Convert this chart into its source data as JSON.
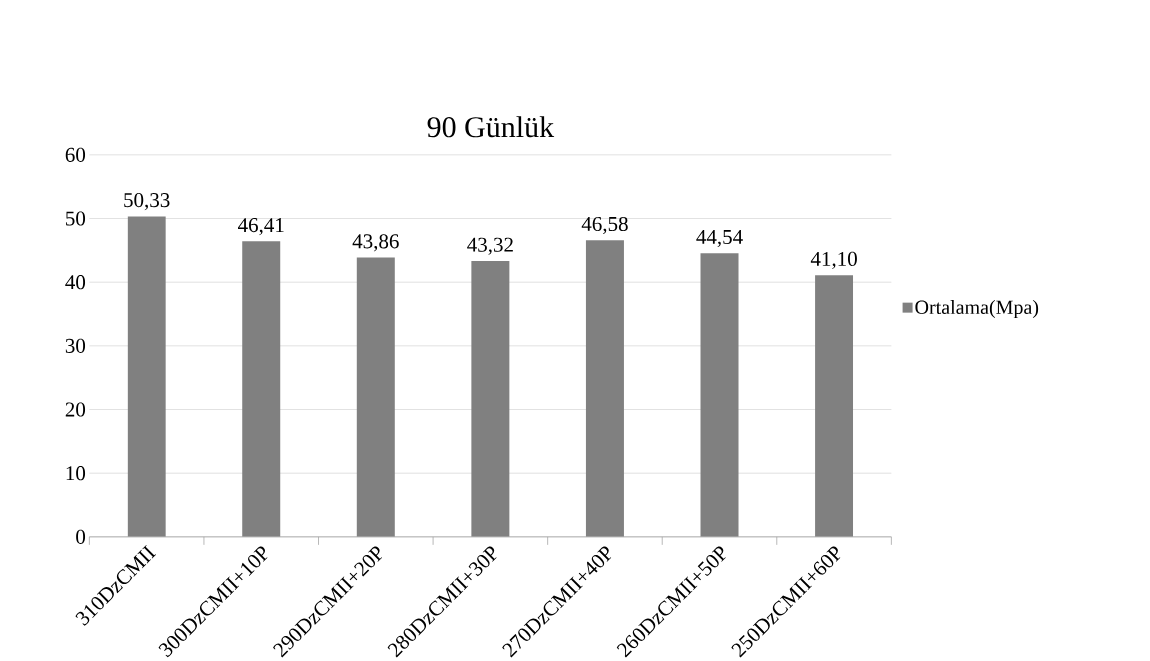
{
  "chart_data": {
    "type": "bar",
    "title": "90 Günlük",
    "categories": [
      "310DzCMII",
      "300DzCMII+10P",
      "290DzCMII+20P",
      "280DzCMII+30P",
      "270DzCMII+40P",
      "260DzCMII+50P",
      "250DzCMII+60P"
    ],
    "series": [
      {
        "name": "Ortalama(Mpa)",
        "color": "#808080",
        "values": [
          50.33,
          46.41,
          43.86,
          43.32,
          46.58,
          44.54,
          41.1
        ],
        "value_labels": [
          "50,33",
          "46,41",
          "43,86",
          "43,32",
          "46,58",
          "44,54",
          "41,10"
        ]
      }
    ],
    "ylim": [
      0,
      60
    ],
    "yticks": [
      0,
      10,
      20,
      30,
      40,
      50,
      60
    ],
    "grid": "y",
    "legend": "right"
  }
}
